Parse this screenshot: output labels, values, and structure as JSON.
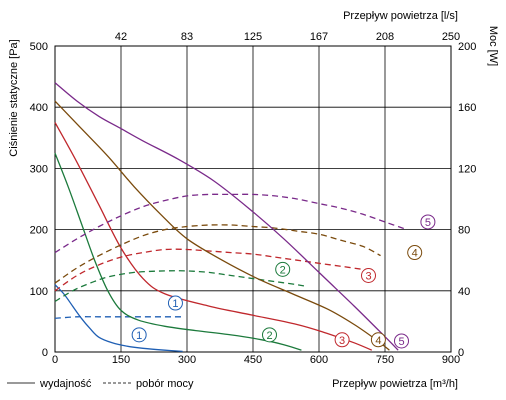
{
  "chart_data": {
    "type": "line",
    "xlabel_bottom": "Przepływ powietrza [m³/h]",
    "xlabel_top": "Przepływ powietrza [l/s]",
    "ylabel_left": "Ciśnienie statyczne [Pa]",
    "ylabel_right": "Moc [W]",
    "xlim": [
      0,
      900
    ],
    "ylim_left": [
      0,
      500
    ],
    "ylim_right": [
      0,
      200
    ],
    "x_ticks": [
      0,
      150,
      300,
      450,
      600,
      750,
      900
    ],
    "x_tick_labels": [
      "0",
      "150",
      "300",
      "450",
      "600",
      "750",
      "900"
    ],
    "top_tick_labels": [
      "42",
      "83",
      "125",
      "167",
      "208",
      "250"
    ],
    "left_ticks": [
      0,
      100,
      200,
      300,
      400,
      500
    ],
    "left_tick_labels": [
      "0",
      "100",
      "200",
      "300",
      "400",
      "500"
    ],
    "right_ticks": [
      0,
      40,
      80,
      120,
      160,
      200
    ],
    "right_tick_labels": [
      "0",
      "40",
      "80",
      "120",
      "160",
      "200"
    ],
    "grid": true,
    "legend": {
      "position": "bottom-left",
      "solid_label": "wydajność",
      "dashed_label": "pobór mocy"
    },
    "series": [
      {
        "label": "1",
        "color": "#1f5fb4",
        "pressure": [
          [
            0,
            110
          ],
          [
            20,
            95
          ],
          [
            40,
            75
          ],
          [
            60,
            55
          ],
          [
            80,
            38
          ],
          [
            100,
            24
          ],
          [
            130,
            15
          ],
          [
            160,
            10
          ],
          [
            200,
            6
          ],
          [
            250,
            3
          ],
          [
            290,
            1
          ]
        ],
        "power": [
          [
            0,
            22
          ],
          [
            50,
            23
          ],
          [
            100,
            23
          ],
          [
            150,
            23
          ],
          [
            200,
            23
          ],
          [
            250,
            23
          ],
          [
            290,
            23
          ]
        ]
      },
      {
        "label": "2",
        "color": "#1c7a3c",
        "pressure": [
          [
            0,
            325
          ],
          [
            30,
            270
          ],
          [
            60,
            210
          ],
          [
            90,
            150
          ],
          [
            120,
            100
          ],
          [
            150,
            68
          ],
          [
            190,
            52
          ],
          [
            250,
            42
          ],
          [
            320,
            35
          ],
          [
            400,
            28
          ],
          [
            470,
            20
          ],
          [
            520,
            12
          ],
          [
            560,
            3
          ]
        ],
        "power": [
          [
            0,
            33
          ],
          [
            40,
            40
          ],
          [
            80,
            45
          ],
          [
            120,
            49
          ],
          [
            180,
            52
          ],
          [
            250,
            53
          ],
          [
            300,
            53
          ],
          [
            350,
            52
          ],
          [
            400,
            50
          ],
          [
            450,
            48
          ],
          [
            500,
            46
          ],
          [
            550,
            44
          ],
          [
            570,
            43
          ]
        ]
      },
      {
        "label": "3",
        "color": "#c0282d",
        "pressure": [
          [
            0,
            375
          ],
          [
            50,
            310
          ],
          [
            100,
            240
          ],
          [
            150,
            170
          ],
          [
            200,
            120
          ],
          [
            250,
            95
          ],
          [
            350,
            75
          ],
          [
            450,
            60
          ],
          [
            550,
            45
          ],
          [
            620,
            30
          ],
          [
            680,
            15
          ],
          [
            720,
            3
          ]
        ],
        "power": [
          [
            0,
            40
          ],
          [
            50,
            50
          ],
          [
            100,
            57
          ],
          [
            150,
            62
          ],
          [
            200,
            65
          ],
          [
            250,
            67
          ],
          [
            300,
            67
          ],
          [
            350,
            66
          ],
          [
            400,
            65
          ],
          [
            450,
            64
          ],
          [
            500,
            62
          ],
          [
            550,
            60
          ],
          [
            600,
            58
          ],
          [
            650,
            56
          ],
          [
            700,
            54
          ]
        ]
      },
      {
        "label": "4",
        "color": "#7a4a0c",
        "pressure": [
          [
            0,
            410
          ],
          [
            60,
            365
          ],
          [
            120,
            320
          ],
          [
            180,
            270
          ],
          [
            240,
            225
          ],
          [
            300,
            185
          ],
          [
            380,
            150
          ],
          [
            460,
            120
          ],
          [
            540,
            95
          ],
          [
            620,
            70
          ],
          [
            680,
            45
          ],
          [
            730,
            20
          ],
          [
            760,
            3
          ]
        ],
        "power": [
          [
            0,
            45
          ],
          [
            50,
            55
          ],
          [
            100,
            63
          ],
          [
            150,
            70
          ],
          [
            200,
            76
          ],
          [
            250,
            80
          ],
          [
            300,
            82
          ],
          [
            350,
            83
          ],
          [
            400,
            83
          ],
          [
            450,
            82
          ],
          [
            500,
            81
          ],
          [
            550,
            79
          ],
          [
            600,
            77
          ],
          [
            650,
            73
          ],
          [
            700,
            69
          ],
          [
            740,
            63
          ]
        ]
      },
      {
        "label": "5",
        "color": "#7a2a8a",
        "pressure": [
          [
            0,
            440
          ],
          [
            50,
            410
          ],
          [
            100,
            385
          ],
          [
            150,
            365
          ],
          [
            200,
            345
          ],
          [
            280,
            315
          ],
          [
            360,
            280
          ],
          [
            440,
            235
          ],
          [
            520,
            185
          ],
          [
            600,
            130
          ],
          [
            680,
            75
          ],
          [
            750,
            25
          ],
          [
            780,
            3
          ]
        ],
        "power": [
          [
            0,
            65
          ],
          [
            50,
            74
          ],
          [
            100,
            82
          ],
          [
            150,
            89
          ],
          [
            200,
            95
          ],
          [
            250,
            99
          ],
          [
            300,
            102
          ],
          [
            350,
            103
          ],
          [
            400,
            103
          ],
          [
            450,
            103
          ],
          [
            500,
            102
          ],
          [
            550,
            100
          ],
          [
            600,
            97
          ],
          [
            650,
            94
          ],
          [
            700,
            90
          ],
          [
            750,
            85
          ],
          [
            800,
            80
          ]
        ]
      }
    ],
    "annotations": [
      {
        "text": "1",
        "series": "1",
        "curve": "pressure",
        "x": 255,
        "y": 28
      },
      {
        "text": "1",
        "series": "1",
        "curve": "power",
        "x": 365,
        "y": 32
      },
      {
        "text": "2",
        "series": "2",
        "curve": "pressure",
        "x": 650,
        "y": 28
      },
      {
        "text": "2",
        "series": "2",
        "curve": "power",
        "x": 690,
        "y": 54
      },
      {
        "text": "3",
        "series": "3",
        "curve": "pressure",
        "x": 870,
        "y": 20
      },
      {
        "text": "3",
        "series": "3",
        "curve": "power",
        "x": 950,
        "y": 50
      },
      {
        "text": "4",
        "series": "4",
        "curve": "pressure",
        "x": 980,
        "y": 20
      },
      {
        "text": "4",
        "series": "4",
        "curve": "power",
        "x": 1090,
        "y": 65
      },
      {
        "text": "5",
        "series": "5",
        "curve": "pressure",
        "x": 1050,
        "y": 18
      },
      {
        "text": "5",
        "series": "5",
        "curve": "power",
        "x": 1130,
        "y": 85
      }
    ]
  }
}
